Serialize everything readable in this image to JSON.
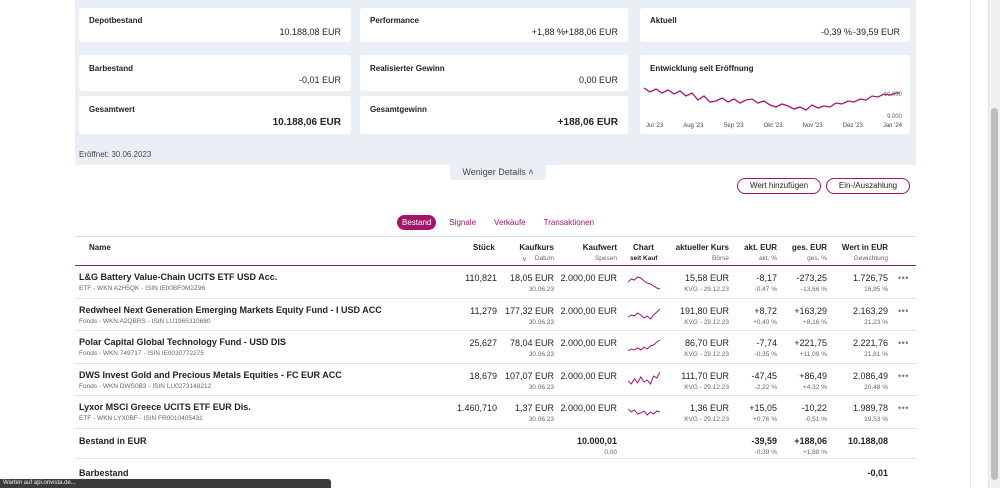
{
  "summary": {
    "depotbestand": {
      "label": "Depotbestand",
      "value": "10.188,08 EUR"
    },
    "performance": {
      "label": "Performance",
      "pct": "+1,88 %",
      "abs": "+188,06 EUR"
    },
    "aktuell": {
      "label": "Aktuell",
      "pct": "-0,39 %",
      "abs": "-39,59 EUR"
    },
    "barbestand": {
      "label": "Barbestand",
      "value": "-0,01 EUR"
    },
    "realisiert": {
      "label": "Realisierter Gewinn",
      "value": "0,00 EUR"
    },
    "entwicklung": {
      "label": "Entwicklung seit Eröffnung",
      "y_top": "10.000",
      "y_bottom": "9.000",
      "x_labels": [
        "Jul '23",
        "Aug '23",
        "Sep '23",
        "Okt '23",
        "Nov '23",
        "Dez '23",
        "Jan '24"
      ]
    },
    "gesamtwert": {
      "label": "Gesamtwert",
      "value": "10.188,06 EUR"
    },
    "gesamtgewinn": {
      "label": "Gesamtgewinn",
      "value": "+188,06 EUR"
    },
    "opened": "Eröffnet: 30.06.2023",
    "less_details": "Weniger Details"
  },
  "actions": {
    "add_value": "Wert hinzufügen",
    "deposit": "Ein-/Auszahlung"
  },
  "tabs": [
    "Bestand",
    "Signale",
    "Verkäufe",
    "Transaktionen"
  ],
  "table": {
    "headers": {
      "name": "Name",
      "stueck": "Stück",
      "kaufkurs": "Kaufkurs",
      "kaufkurs_sub": "Datum",
      "kaufwert": "Kaufwert",
      "kaufwert_sub": "Spesen",
      "chart": "Chart",
      "chart_sub": "seit Kauf",
      "kurs": "aktueller Kurs",
      "kurs_sub": "Börse",
      "akt": "akt. EUR",
      "akt_sub": "akt. %",
      "ges": "ges. EUR",
      "ges_sub": "ges. %",
      "wert": "Wert in EUR",
      "wert_sub": "Gewichtung"
    },
    "rows": [
      {
        "name": "L&G Battery Value-Chain UCITS ETF USD Acc.",
        "sub": "ETF - WKN A2H5QK - ISIN IE00BF0M2Z96",
        "stueck": "110,821",
        "kaufkurs": "18,05 EUR",
        "datum": "30.06.23",
        "kaufwert": "2.000,00 EUR",
        "kurs": "15,58 EUR",
        "boerse": "KVG - 29.12.23",
        "akt": "-8,17",
        "akt_pct": "-0,47 %",
        "ges": "-273,25",
        "ges_pct": "-13,66 %",
        "wert": "1.726,75",
        "gew": "16,95 %",
        "akt_color": "red",
        "ges_color": "red",
        "spark": [
          12,
          9,
          10,
          7,
          8,
          11,
          13,
          14,
          16,
          18,
          19
        ]
      },
      {
        "name": "Redwheel Next Generation Emerging Markets Equity Fund - I USD ACC",
        "sub": "Fonds - WKN A2QBRS - ISIN LU1965310680",
        "stueck": "11,279",
        "kaufkurs": "177,32 EUR",
        "datum": "30.06.23",
        "kaufwert": "2.000,00 EUR",
        "kurs": "191,80 EUR",
        "boerse": "KVG - 29.12.23",
        "akt": "+8,72",
        "akt_pct": "+0,40 %",
        "ges": "+163,29",
        "ges_pct": "+8,16 %",
        "wert": "2.163,29",
        "gew": "21,23 %",
        "akt_color": "green",
        "ges_color": "green",
        "spark": [
          14,
          12,
          13,
          10,
          12,
          15,
          13,
          16,
          12,
          9,
          6
        ]
      },
      {
        "name": "Polar Capital Global Technology Fund - USD DIS",
        "sub": "Fonds - WKN 749717 - ISIN IE0030772275",
        "stueck": "25,627",
        "kaufkurs": "78,04 EUR",
        "datum": "30.06.23",
        "kaufwert": "2.000,00 EUR",
        "kurs": "86,70 EUR",
        "boerse": "KVG - 29.12.23",
        "akt": "-7,74",
        "akt_pct": "-0,35 %",
        "ges": "+221,75",
        "ges_pct": "+11,09 %",
        "wert": "2.221,76",
        "gew": "21,81 %",
        "akt_color": "red",
        "ges_color": "green",
        "spark": [
          16,
          14,
          15,
          13,
          15,
          12,
          14,
          11,
          10,
          7,
          5
        ]
      },
      {
        "name": "DWS Invest Gold and Precious Metals Equities - FC EUR ACC",
        "sub": "Fonds - WKN DWS0B3 - ISIN LU0273148212",
        "stueck": "18,679",
        "kaufkurs": "107,07 EUR",
        "datum": "30.06.23",
        "kaufwert": "2.000,00 EUR",
        "kurs": "111,70 EUR",
        "boerse": "KVG - 29.12.23",
        "akt": "-47,45",
        "akt_pct": "-2,22 %",
        "ges": "+86,49",
        "ges_pct": "+4,32 %",
        "wert": "2.086,49",
        "gew": "20,48 %",
        "akt_color": "red",
        "ges_color": "green",
        "spark": [
          13,
          16,
          11,
          15,
          9,
          14,
          12,
          16,
          8,
          10,
          4
        ]
      },
      {
        "name": "Lyxor MSCI Greece UCITS ETF EUR Dis.",
        "sub": "ETF - WKN LYX0BF - ISIN FR0010405431",
        "stueck": "1.460,710",
        "kaufkurs": "1,37 EUR",
        "datum": "30.06.23",
        "kaufwert": "2.000,00 EUR",
        "kurs": "1,36 EUR",
        "boerse": "KVG - 29.12.23",
        "akt": "+15,05",
        "akt_pct": "+0,76 %",
        "ges": "-10,22",
        "ges_pct": "-0,51 %",
        "wert": "1.989,78",
        "gew": "19,53 %",
        "akt_color": "green",
        "ges_color": "red",
        "spark": [
          9,
          12,
          10,
          14,
          13,
          11,
          15,
          12,
          14,
          11,
          12
        ]
      }
    ],
    "total": {
      "label": "Bestand in EUR",
      "kaufwert": "10.000,01",
      "spesen": "0,00",
      "akt": "-39,59",
      "akt_pct": "-0,39 %",
      "ges": "+188,06",
      "ges_pct": "+1,88 %",
      "wert": "10.188,08"
    },
    "cash": {
      "label": "Barbestand",
      "value": "-0,01"
    }
  },
  "status_bar": "Warten auf api.onvista.de...",
  "colors": {
    "accent": "#a3156a",
    "green": "#1e9a1e",
    "red": "#d42a2a",
    "panel": "#e9eff5"
  }
}
